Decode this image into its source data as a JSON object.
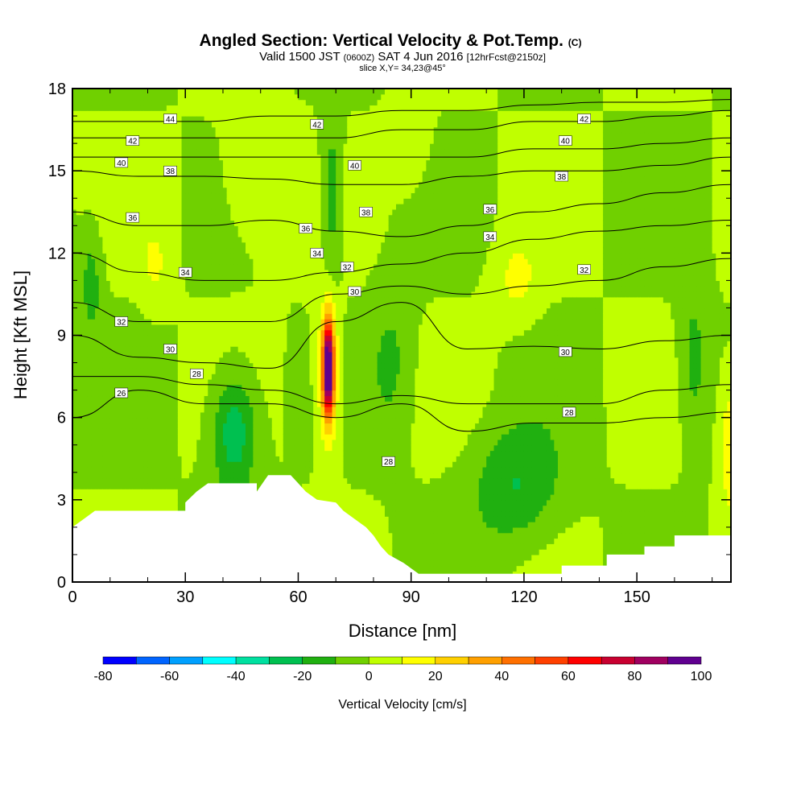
{
  "title": "Angled Section: Vertical Velocity & Pot.Temp.",
  "title_units": "(C)",
  "subtitle": {
    "prefix": "Valid 1500 JST",
    "utc": "(0600Z)",
    "date": "SAT 4 Jun 2016",
    "fcst": "[12hrFcst@2150z]"
  },
  "slice_label": "slice X,Y= 34,23@45°",
  "chart_data": {
    "type": "heatmap",
    "xlabel": "Distance [nm]",
    "ylabel": "Height [Kft MSL]",
    "xlim": [
      0,
      175
    ],
    "ylim": [
      0,
      18
    ],
    "x_ticks": [
      "0",
      "30",
      "60",
      "90",
      "120",
      "150"
    ],
    "y_ticks": [
      "0",
      "3",
      "6",
      "9",
      "12",
      "15",
      "18"
    ],
    "colorbar": {
      "label": "Vertical Velocity [cm/s]",
      "tick_labels": [
        "-80",
        "-60",
        "-40",
        "-20",
        "0",
        "20",
        "40",
        "60",
        "80",
        "100"
      ],
      "levels": [
        -80,
        -70,
        -60,
        -50,
        -40,
        -30,
        -20,
        -10,
        0,
        10,
        20,
        30,
        40,
        50,
        60,
        70,
        80,
        90,
        100
      ],
      "colors": [
        "#0000ff",
        "#0064ff",
        "#00a0ff",
        "#00ffff",
        "#00e0a0",
        "#00c050",
        "#20b010",
        "#70d000",
        "#c0ff00",
        "#ffff00",
        "#ffd000",
        "#ffa000",
        "#ff7000",
        "#ff4000",
        "#ff0000",
        "#c80030",
        "#a00060",
        "#600090"
      ]
    },
    "background_w": 0,
    "w_features": [
      {
        "name": "updraft-core",
        "x": 68,
        "y": 7.8,
        "sx": 1.5,
        "sy": 1.7,
        "w": 100
      },
      {
        "name": "updraft-shell",
        "x": 68,
        "y": 7.5,
        "sx": 3.5,
        "sy": 3.0,
        "w": 22
      },
      {
        "name": "downdraft-west",
        "x": 43,
        "y": 5.5,
        "sx": 6,
        "sy": 2.2,
        "w": -30
      },
      {
        "name": "downdraft-upper",
        "x": 69,
        "y": 14,
        "sx": 3,
        "sy": 3,
        "w": -20
      },
      {
        "name": "downdraft-east",
        "x": 118,
        "y": 3.5,
        "sx": 12,
        "sy": 2.2,
        "w": -20
      },
      {
        "name": "downdraft-mid",
        "x": 85,
        "y": 8,
        "sx": 6,
        "sy": 3,
        "w": -12
      },
      {
        "name": "updraft-upper-left",
        "x": 48,
        "y": 14.5,
        "sx": 10,
        "sy": 2.5,
        "w": 10
      },
      {
        "name": "updraft-upper-mid",
        "x": 90,
        "y": 16,
        "sx": 5,
        "sy": 1.8,
        "w": 10
      },
      {
        "name": "updraft-right",
        "x": 118,
        "y": 11,
        "sx": 6,
        "sy": 1.5,
        "w": 12
      },
      {
        "name": "updraft-far-right",
        "x": 175,
        "y": 5,
        "sx": 3,
        "sy": 2.5,
        "w": 20
      },
      {
        "name": "updraft-left",
        "x": 22,
        "y": 11.5,
        "sx": 4,
        "sy": 1.5,
        "w": 10
      },
      {
        "name": "downdraft-left",
        "x": 5,
        "y": 11,
        "sx": 3,
        "sy": 2,
        "w": -15
      },
      {
        "name": "downdraft-right",
        "x": 165,
        "y": 8,
        "sx": 4,
        "sy": 3,
        "w": -15
      }
    ],
    "terrain_height": [
      {
        "x": 0,
        "z": 2.0
      },
      {
        "x": 3,
        "z": 2.3
      },
      {
        "x": 6,
        "z": 2.6
      },
      {
        "x": 30,
        "z": 2.6
      },
      {
        "x": 30,
        "z": 2.9
      },
      {
        "x": 33,
        "z": 3.3
      },
      {
        "x": 36,
        "z": 3.6
      },
      {
        "x": 49,
        "z": 3.6
      },
      {
        "x": 49,
        "z": 3.3
      },
      {
        "x": 52,
        "z": 3.9
      },
      {
        "x": 58,
        "z": 3.9
      },
      {
        "x": 60,
        "z": 3.6
      },
      {
        "x": 62,
        "z": 3.3
      },
      {
        "x": 65,
        "z": 3.0
      },
      {
        "x": 70,
        "z": 2.9
      },
      {
        "x": 72,
        "z": 2.6
      },
      {
        "x": 75,
        "z": 2.3
      },
      {
        "x": 78,
        "z": 2.0
      },
      {
        "x": 80,
        "z": 1.7
      },
      {
        "x": 82,
        "z": 1.3
      },
      {
        "x": 84,
        "z": 1.0
      },
      {
        "x": 88,
        "z": 0.7
      },
      {
        "x": 92,
        "z": 0.3
      },
      {
        "x": 130,
        "z": 0.3
      },
      {
        "x": 130,
        "z": 0.6
      },
      {
        "x": 142,
        "z": 0.6
      },
      {
        "x": 142,
        "z": 1.0
      },
      {
        "x": 152,
        "z": 1.0
      },
      {
        "x": 152,
        "z": 1.3
      },
      {
        "x": 160,
        "z": 1.3
      },
      {
        "x": 160,
        "z": 1.7
      },
      {
        "x": 175,
        "z": 1.7
      }
    ],
    "isentropes": [
      {
        "theta": 26,
        "z": [
          6.0,
          7.0,
          6.5,
          6.5,
          6.0,
          6.5,
          5.5,
          5.8,
          5.8,
          6.0,
          6.2
        ]
      },
      {
        "theta": 28,
        "z": [
          7.5,
          7.5,
          7.2,
          7.0,
          6.5,
          6.8,
          6.5,
          6.5,
          6.5,
          7.0,
          7.2
        ]
      },
      {
        "theta": 30,
        "z": [
          9.0,
          8.2,
          8.0,
          7.8,
          9.5,
          10.2,
          8.5,
          8.6,
          8.5,
          8.8,
          9.0
        ]
      },
      {
        "theta": 32,
        "z": [
          10.2,
          9.5,
          9.5,
          9.5,
          10.5,
          10.8,
          10.5,
          10.8,
          11.0,
          11.5,
          11.8
        ]
      },
      {
        "theta": 34,
        "z": [
          12.0,
          11.3,
          11.0,
          11.0,
          11.3,
          11.6,
          12.0,
          12.5,
          12.8,
          13.0,
          13.2
        ]
      },
      {
        "theta": 36,
        "z": [
          13.5,
          13.0,
          13.0,
          13.2,
          12.8,
          12.6,
          13.0,
          13.5,
          13.8,
          14.2,
          14.5
        ]
      },
      {
        "theta": 38,
        "z": [
          15.0,
          14.8,
          14.8,
          14.7,
          14.5,
          14.5,
          14.8,
          15.0,
          15.0,
          15.2,
          15.5
        ]
      },
      {
        "theta": 40,
        "z": [
          15.5,
          15.5,
          15.5,
          15.5,
          15.5,
          15.5,
          15.5,
          15.8,
          15.8,
          16.0,
          16.2
        ]
      },
      {
        "theta": 42,
        "z": [
          16.2,
          16.2,
          16.2,
          16.2,
          16.2,
          16.5,
          16.5,
          16.8,
          16.8,
          17.0,
          17.2
        ]
      },
      {
        "theta": 44,
        "z": [
          16.8,
          16.8,
          16.8,
          17.0,
          17.0,
          17.2,
          17.2,
          17.4,
          17.5,
          17.5,
          17.6
        ]
      }
    ],
    "isentrope_x": [
      0,
      17.5,
      35,
      52.5,
      70,
      87.5,
      105,
      122.5,
      140,
      157.5,
      175
    ],
    "contour_labels": [
      {
        "text": "44",
        "x": 26,
        "y": 16.9
      },
      {
        "text": "42",
        "x": 16,
        "y": 16.1
      },
      {
        "text": "40",
        "x": 13,
        "y": 15.3
      },
      {
        "text": "38",
        "x": 26,
        "y": 15.0
      },
      {
        "text": "36",
        "x": 16,
        "y": 13.3
      },
      {
        "text": "34",
        "x": 30,
        "y": 11.3
      },
      {
        "text": "32",
        "x": 13,
        "y": 9.5
      },
      {
        "text": "30",
        "x": 26,
        "y": 8.5
      },
      {
        "text": "28",
        "x": 33,
        "y": 7.6
      },
      {
        "text": "26",
        "x": 13,
        "y": 6.9
      },
      {
        "text": "42",
        "x": 65,
        "y": 16.7
      },
      {
        "text": "40",
        "x": 75,
        "y": 15.2
      },
      {
        "text": "38",
        "x": 78,
        "y": 13.5
      },
      {
        "text": "36",
        "x": 62,
        "y": 12.9
      },
      {
        "text": "34",
        "x": 65,
        "y": 12.0
      },
      {
        "text": "32",
        "x": 73,
        "y": 11.5
      },
      {
        "text": "30",
        "x": 75,
        "y": 10.6
      },
      {
        "text": "28",
        "x": 84,
        "y": 4.4
      },
      {
        "text": "42",
        "x": 136,
        "y": 16.9
      },
      {
        "text": "40",
        "x": 131,
        "y": 16.1
      },
      {
        "text": "38",
        "x": 130,
        "y": 14.8
      },
      {
        "text": "36",
        "x": 111,
        "y": 13.6
      },
      {
        "text": "34",
        "x": 111,
        "y": 12.6
      },
      {
        "text": "32",
        "x": 136,
        "y": 11.4
      },
      {
        "text": "30",
        "x": 131,
        "y": 8.4
      },
      {
        "text": "28",
        "x": 132,
        "y": 6.2
      }
    ]
  }
}
